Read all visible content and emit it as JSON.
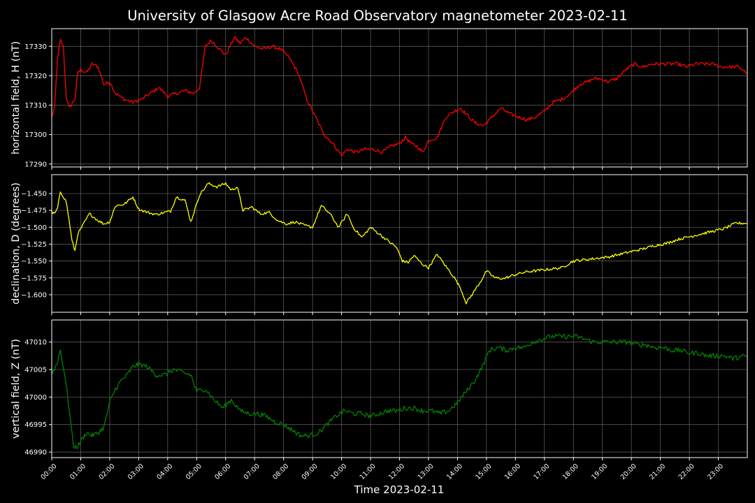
{
  "title": "University of Glasgow Acre Road Observatory magnetometer 2023-02-11",
  "xlabel": "Time 2023-02-11",
  "xticks": [
    "00:00",
    "01:00",
    "02:00",
    "03:00",
    "04:00",
    "05:00",
    "06:00",
    "07:00",
    "08:00",
    "09:00",
    "10:00",
    "11:00",
    "12:00",
    "13:00",
    "14:00",
    "15:00",
    "16:00",
    "17:00",
    "18:00",
    "19:00",
    "20:00",
    "21:00",
    "22:00",
    "23:00"
  ],
  "colors": {
    "background": "#000000",
    "grid": "#808080",
    "axes": "#ffffff",
    "H": "#ff0000",
    "D": "#ffff00",
    "Z": "#008000"
  },
  "chart_data": [
    {
      "type": "line",
      "ylabel": "horizontal field, H (nT)",
      "color": "#ff0000",
      "xlim": [
        0,
        24
      ],
      "ylim": [
        17289,
        17336
      ],
      "yticks": [
        17290,
        17300,
        17310,
        17320,
        17330
      ],
      "ytick_labels": [
        "17290",
        "17300",
        "17310",
        "17320",
        "17330"
      ],
      "grid": true,
      "noise": 0.6,
      "x": [
        0.0,
        0.1,
        0.2,
        0.3,
        0.4,
        0.5,
        0.6,
        0.8,
        0.9,
        1.0,
        1.2,
        1.4,
        1.6,
        1.8,
        2.0,
        2.2,
        2.5,
        2.8,
        3.1,
        3.4,
        3.7,
        4.0,
        4.3,
        4.6,
        4.9,
        5.1,
        5.3,
        5.5,
        5.8,
        6.0,
        6.3,
        6.5,
        6.7,
        7.0,
        7.3,
        7.6,
        7.9,
        8.2,
        8.5,
        8.8,
        9.1,
        9.4,
        9.7,
        10.0,
        10.2,
        10.5,
        10.8,
        11.1,
        11.4,
        11.7,
        12.0,
        12.2,
        12.4,
        12.6,
        12.8,
        13.0,
        13.3,
        13.6,
        13.9,
        14.1,
        14.3,
        14.6,
        14.9,
        15.2,
        15.5,
        15.8,
        16.1,
        16.4,
        16.7,
        17.0,
        17.3,
        17.6,
        17.9,
        18.2,
        18.5,
        18.7,
        18.9,
        19.2,
        19.5,
        19.8,
        20.1,
        20.4,
        20.7,
        21.0,
        21.3,
        21.6,
        21.9,
        22.2,
        22.5,
        22.8,
        23.1,
        23.4,
        23.7,
        23.98
      ],
      "values": [
        17306,
        17309,
        17326,
        17332,
        17330,
        17313,
        17309,
        17312,
        17321,
        17322,
        17321,
        17324,
        17323,
        17317,
        17318,
        17314,
        17312,
        17311,
        17312,
        17314,
        17316,
        17313,
        17314,
        17315,
        17314,
        17316,
        17330,
        17332,
        17329,
        17327,
        17333,
        17331,
        17333,
        17330,
        17329,
        17330,
        17329,
        17326,
        17321,
        17312,
        17306,
        17300,
        17297,
        17293,
        17295,
        17294,
        17295,
        17295,
        17294,
        17296,
        17297,
        17299,
        17297,
        17296,
        17294,
        17298,
        17299,
        17306,
        17308,
        17309,
        17307,
        17304,
        17303,
        17306,
        17309,
        17307,
        17306,
        17305,
        17306,
        17308,
        17311,
        17312,
        17314,
        17317,
        17318,
        17319,
        17319,
        17318,
        17319,
        17322,
        17324,
        17323,
        17324,
        17324,
        17324,
        17324,
        17323,
        17324,
        17324,
        17324,
        17323,
        17323,
        17323,
        17321
      ]
    },
    {
      "type": "line",
      "ylabel": "declination, D (degrees)",
      "color": "#ffff00",
      "xlim": [
        0,
        24
      ],
      "ylim": [
        -1.626,
        -1.422
      ],
      "yticks": [
        -1.6,
        -1.575,
        -1.55,
        -1.525,
        -1.5,
        -1.475,
        -1.45
      ],
      "ytick_labels": [
        "−1.600",
        "−1.575",
        "−1.550",
        "−1.525",
        "−1.500",
        "−1.475",
        "−1.450"
      ],
      "grid": true,
      "noise": 0.002,
      "x": [
        0.0,
        0.1,
        0.2,
        0.3,
        0.5,
        0.6,
        0.7,
        0.8,
        0.9,
        1.1,
        1.3,
        1.6,
        1.8,
        2.0,
        2.2,
        2.5,
        2.8,
        3.0,
        3.3,
        3.6,
        3.9,
        4.1,
        4.3,
        4.6,
        4.8,
        5.1,
        5.4,
        5.7,
        6.0,
        6.2,
        6.4,
        6.6,
        6.9,
        7.2,
        7.5,
        7.8,
        8.1,
        8.4,
        8.7,
        9.0,
        9.3,
        9.6,
        9.9,
        10.2,
        10.4,
        10.7,
        11.0,
        11.3,
        11.6,
        11.9,
        12.1,
        12.3,
        12.5,
        12.8,
        13.0,
        13.3,
        13.6,
        13.9,
        14.1,
        14.3,
        14.5,
        14.8,
        15.0,
        15.3,
        15.6,
        16.0,
        16.4,
        16.8,
        17.2,
        17.6,
        18.0,
        18.4,
        18.8,
        19.2,
        19.6,
        20.0,
        20.4,
        20.8,
        21.2,
        21.6,
        22.0,
        22.4,
        22.8,
        23.2,
        23.6,
        23.98
      ],
      "values": [
        -1.478,
        -1.48,
        -1.472,
        -1.447,
        -1.462,
        -1.49,
        -1.52,
        -1.535,
        -1.51,
        -1.495,
        -1.48,
        -1.49,
        -1.495,
        -1.492,
        -1.468,
        -1.466,
        -1.455,
        -1.473,
        -1.478,
        -1.481,
        -1.478,
        -1.476,
        -1.455,
        -1.46,
        -1.492,
        -1.452,
        -1.435,
        -1.44,
        -1.435,
        -1.445,
        -1.44,
        -1.475,
        -1.47,
        -1.48,
        -1.478,
        -1.49,
        -1.495,
        -1.492,
        -1.497,
        -1.5,
        -1.468,
        -1.48,
        -1.5,
        -1.48,
        -1.5,
        -1.515,
        -1.5,
        -1.51,
        -1.52,
        -1.53,
        -1.55,
        -1.552,
        -1.542,
        -1.555,
        -1.56,
        -1.54,
        -1.558,
        -1.575,
        -1.59,
        -1.612,
        -1.6,
        -1.58,
        -1.565,
        -1.575,
        -1.576,
        -1.57,
        -1.566,
        -1.564,
        -1.562,
        -1.56,
        -1.55,
        -1.548,
        -1.546,
        -1.544,
        -1.54,
        -1.536,
        -1.532,
        -1.527,
        -1.524,
        -1.518,
        -1.514,
        -1.51,
        -1.506,
        -1.502,
        -1.494,
        -1.494
      ]
    },
    {
      "type": "line",
      "ylabel": "vertical field, Z (nT)",
      "color": "#008000",
      "xlim": [
        0,
        24
      ],
      "ylim": [
        46989,
        47014
      ],
      "yticks": [
        46990,
        46995,
        47000,
        47005,
        47010
      ],
      "ytick_labels": [
        "46990",
        "46995",
        "47000",
        "47005",
        "47010"
      ],
      "grid": true,
      "noise": 0.45,
      "x": [
        0.0,
        0.1,
        0.2,
        0.3,
        0.45,
        0.6,
        0.75,
        0.9,
        1.0,
        1.2,
        1.4,
        1.6,
        1.8,
        2.0,
        2.2,
        2.4,
        2.6,
        2.8,
        3.0,
        3.3,
        3.6,
        3.9,
        4.2,
        4.5,
        4.8,
        5.0,
        5.3,
        5.6,
        5.9,
        6.2,
        6.5,
        6.8,
        7.1,
        7.4,
        7.7,
        8.0,
        8.3,
        8.6,
        8.9,
        9.2,
        9.5,
        9.8,
        10.1,
        10.4,
        10.7,
        11.0,
        11.3,
        11.6,
        11.9,
        12.2,
        12.5,
        12.8,
        13.1,
        13.4,
        13.7,
        14.0,
        14.3,
        14.6,
        14.9,
        15.1,
        15.4,
        15.7,
        16.0,
        16.3,
        16.6,
        16.9,
        17.2,
        17.5,
        17.8,
        18.1,
        18.4,
        18.7,
        19.0,
        19.3,
        19.6,
        19.9,
        20.2,
        20.5,
        20.8,
        21.1,
        21.4,
        21.7,
        22.0,
        22.3,
        22.6,
        22.9,
        23.2,
        23.5,
        23.98
      ],
      "values": [
        47004.5,
        47005,
        47006.5,
        47008.5,
        47004,
        46998,
        46991,
        46991,
        46992,
        46993.5,
        46993,
        46993.5,
        46994.5,
        46999,
        47001.5,
        47003,
        47004,
        47005.5,
        47006,
        47005.5,
        47004,
        47004,
        47005,
        47004.5,
        47004,
        47001,
        47001.5,
        46999.5,
        46998,
        46999.5,
        46997.5,
        46997,
        46997,
        46996.5,
        46995.5,
        46995,
        46994,
        46993,
        46993,
        46993.5,
        46995,
        46996.5,
        46997.5,
        46997,
        46997,
        46996.5,
        46997,
        46997.5,
        46997.5,
        46998,
        46998,
        46997.5,
        46997.5,
        46997,
        46997.5,
        46999,
        47001,
        47003,
        47006,
        47008.5,
        47009,
        47008.5,
        47009,
        47009,
        47010,
        47010.5,
        47011,
        47011,
        47011,
        47011,
        47010.5,
        47010,
        47010,
        47010,
        47010,
        47010,
        47009.5,
        47009.5,
        47009,
        47009,
        47008.5,
        47008.5,
        47008,
        47008,
        47007.5,
        47007.5,
        47007.5,
        47007,
        47007.5
      ]
    }
  ]
}
